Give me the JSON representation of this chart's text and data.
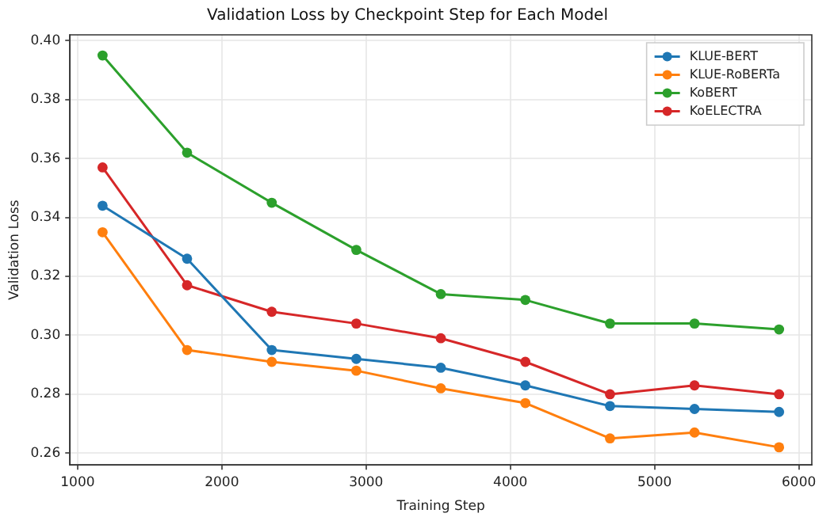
{
  "chart_data": {
    "type": "line",
    "title": "Validation Loss by Checkpoint Step for Each Model",
    "xlabel": "Training Step",
    "ylabel": "Validation Loss",
    "x": [
      1173,
      1759,
      2346,
      2932,
      3518,
      4104,
      4691,
      5277,
      5863
    ],
    "series": [
      {
        "name": "KLUE-BERT",
        "color": "#1f77b4",
        "values": [
          0.344,
          0.326,
          0.295,
          0.292,
          0.289,
          0.283,
          0.276,
          0.275,
          0.274
        ]
      },
      {
        "name": "KLUE-RoBERTa",
        "color": "#ff7f0e",
        "values": [
          0.335,
          0.295,
          0.291,
          0.288,
          0.282,
          0.277,
          0.265,
          0.267,
          0.262
        ]
      },
      {
        "name": "KoBERT",
        "color": "#2ca02c",
        "values": [
          0.395,
          0.362,
          0.345,
          0.329,
          0.314,
          0.312,
          0.304,
          0.304,
          0.302
        ]
      },
      {
        "name": "KoELECTRA",
        "color": "#d62728",
        "values": [
          0.357,
          0.317,
          0.308,
          0.304,
          0.299,
          0.291,
          0.28,
          0.283,
          0.28
        ]
      }
    ],
    "xlim": [
      947,
      6090
    ],
    "xticks": [
      1000,
      2000,
      3000,
      4000,
      5000,
      6000
    ],
    "ylim": [
      0.256,
      0.402
    ],
    "yticks": [
      {
        "value": 0.26,
        "label": "0.26"
      },
      {
        "value": 0.28,
        "label": "0.28"
      },
      {
        "value": 0.3,
        "label": "0.30"
      },
      {
        "value": 0.32,
        "label": "0.32"
      },
      {
        "value": 0.34,
        "label": "0.34"
      },
      {
        "value": 0.36,
        "label": "0.36"
      },
      {
        "value": 0.38,
        "label": "0.38"
      },
      {
        "value": 0.4,
        "label": "0.40"
      }
    ],
    "grid": true,
    "legend": "top right",
    "marker": "circle",
    "line_style": "solid"
  }
}
